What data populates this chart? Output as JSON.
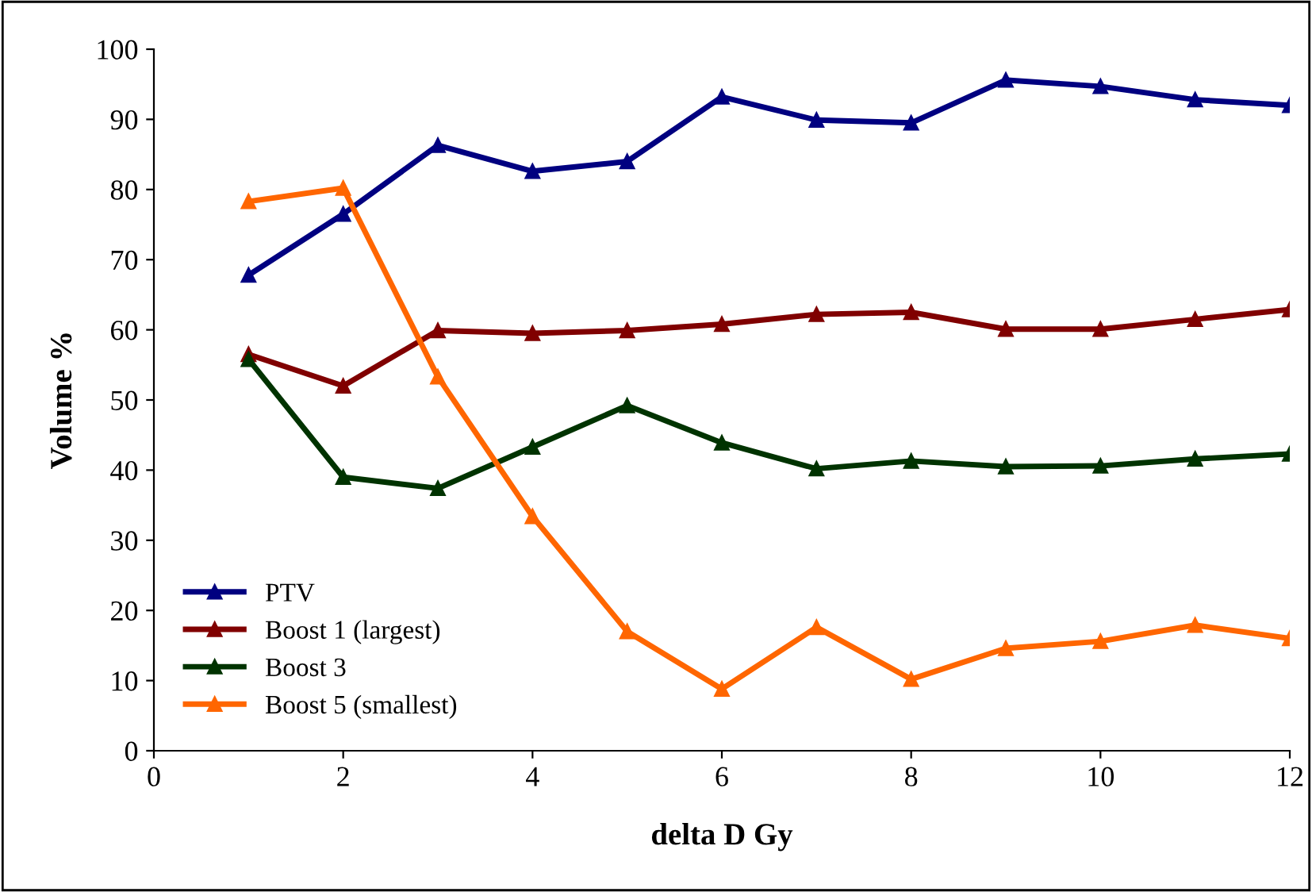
{
  "chart_data": {
    "type": "line",
    "xlabel": "delta D Gy",
    "ylabel": "Volume %",
    "x": [
      1,
      2,
      3,
      4,
      5,
      6,
      7,
      8,
      9,
      10,
      11,
      12
    ],
    "series": [
      {
        "name": "PTV",
        "color": "#000080",
        "values": [
          67.8,
          76.5,
          86.3,
          82.6,
          84,
          93.2,
          89.9,
          89.5,
          95.6,
          94.7,
          92.8,
          92
        ]
      },
      {
        "name": "Boost 1 (largest)",
        "color": "#800000",
        "values": [
          56.5,
          52,
          59.9,
          59.5,
          59.9,
          60.8,
          62.2,
          62.5,
          60.1,
          60.1,
          61.5,
          62.9
        ]
      },
      {
        "name": "Boost 3",
        "color": "#003300",
        "values": [
          55.8,
          39,
          37.4,
          43.3,
          49.2,
          43.9,
          40.2,
          41.3,
          40.5,
          40.6,
          41.6,
          42.3
        ]
      },
      {
        "name": "Boost 5 (smallest)",
        "color": "#ff6600",
        "values": [
          78.3,
          80.2,
          53.3,
          33.4,
          17,
          8.8,
          17.6,
          10.2,
          14.6,
          15.6,
          17.9,
          16
        ]
      }
    ],
    "xlim": [
      0,
      12
    ],
    "xticks": [
      0,
      2,
      4,
      6,
      8,
      10,
      12
    ],
    "ylim": [
      0,
      100
    ],
    "yticks": [
      0,
      10,
      20,
      30,
      40,
      50,
      60,
      70,
      80,
      90,
      100
    ],
    "grid": false,
    "legend": "bottom left",
    "marker": "triangle",
    "line_style": "solid"
  }
}
